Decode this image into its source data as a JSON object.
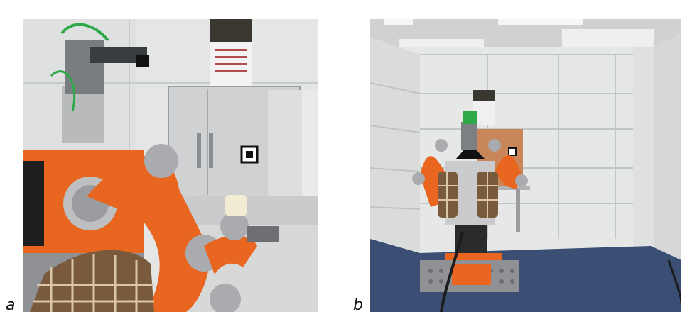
{
  "figure": {
    "panels": [
      {
        "label": "a",
        "content": "robot-closeup-photo"
      },
      {
        "label": "b",
        "content": "robot-room-photo"
      }
    ]
  },
  "colors": {
    "robot_orange": "#e8661f",
    "robot_grey": "#a9abae",
    "wall_white": "#e9ebea",
    "floor_blue": "#3a4f73",
    "plaid_brown": "#7a5a3c"
  }
}
